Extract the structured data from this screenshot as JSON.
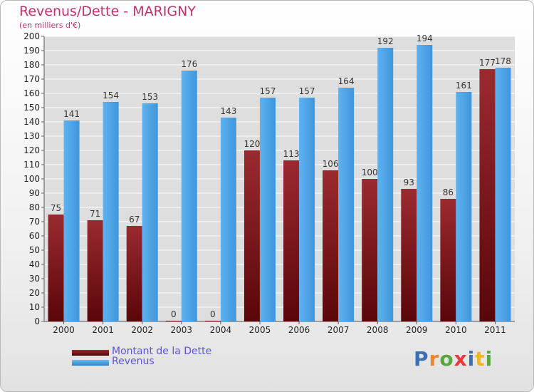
{
  "header": {
    "title": "Revenus/Dette - MARIGNY",
    "subtitle": "(en milliers d'€)"
  },
  "legend": {
    "items": [
      {
        "label": "Montant de la Dette",
        "color": "#7a0f12"
      },
      {
        "label": "Revenus",
        "color": "#4aa3e6"
      }
    ]
  },
  "logo": {
    "letters": [
      "P",
      "r",
      "o",
      "x",
      "i",
      "t",
      "i"
    ],
    "colors": [
      "#3d6fb3",
      "#f0852a",
      "#56a83c",
      "#e43c3c",
      "#3d6fb3",
      "#f0b42a",
      "#56a83c"
    ]
  },
  "chart_data": {
    "type": "bar",
    "categories": [
      "2000",
      "2001",
      "2002",
      "2003",
      "2004",
      "2005",
      "2006",
      "2007",
      "2008",
      "2009",
      "2010",
      "2011"
    ],
    "series": [
      {
        "name": "Montant de la Dette",
        "values": [
          75,
          71,
          67,
          0,
          0,
          120,
          113,
          106,
          100,
          93,
          86,
          177
        ],
        "color": "#7a1a1f"
      },
      {
        "name": "Revenus",
        "values": [
          141,
          154,
          153,
          176,
          143,
          157,
          157,
          164,
          192,
          194,
          161,
          178
        ],
        "color": "#4aa3e6"
      }
    ],
    "ylim": [
      0,
      200
    ],
    "ytick_step": 10,
    "grid": true,
    "legend_position": "bottom-left"
  }
}
